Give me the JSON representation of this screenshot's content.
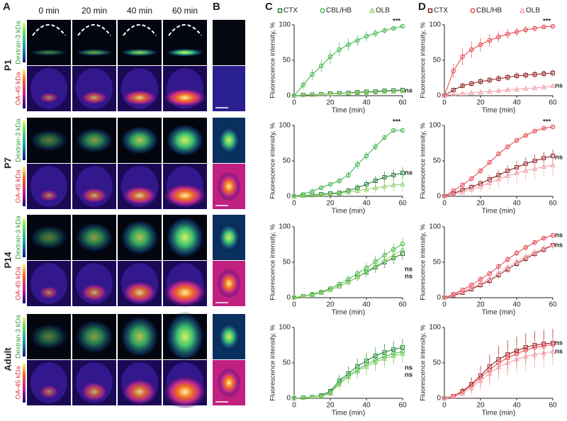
{
  "panels": [
    "A",
    "B",
    "C",
    "D"
  ],
  "panel_a": {
    "columns": [
      "0 min",
      "20 min",
      "40 min",
      "60 min"
    ],
    "groups": [
      {
        "label": "P1",
        "rows": [
          "Dextran-3 kDa",
          "OA-45 kDa"
        ]
      },
      {
        "label": "P7",
        "rows": [
          "Dextran-3 kDa",
          "OA-45 kDa"
        ]
      },
      {
        "label": "P14",
        "rows": [
          "Dextran-3 kDa",
          "OA-45 kDa"
        ]
      },
      {
        "label": "Adult",
        "rows": [
          "Dextran-3 kDa",
          "OA-45 kDa"
        ]
      }
    ]
  },
  "chart_data": [
    {
      "type": "line",
      "xlabel": "Time (min)",
      "ylabel": "Fluorescence intensity, %",
      "x": [
        0,
        5,
        10,
        15,
        20,
        25,
        30,
        35,
        40,
        45,
        50,
        55,
        60
      ],
      "xlim": [
        0,
        60
      ],
      "ylim": [
        0,
        100
      ],
      "xticks": [
        0,
        20,
        40,
        60
      ],
      "yticks": [
        0,
        50,
        100
      ],
      "annotations": [
        "***",
        "ns"
      ],
      "series": [
        {
          "name": "CTX",
          "color": "#1d7a32",
          "marker": "square",
          "values": [
            0,
            1,
            1.5,
            2,
            3,
            3.5,
            4,
            5,
            5.5,
            6,
            7,
            7.5,
            8
          ],
          "errors": [
            0,
            1,
            1,
            1,
            1,
            1,
            1,
            1,
            1,
            1,
            1,
            1,
            1
          ]
        },
        {
          "name": "CBL/HB",
          "color": "#3cb54a",
          "marker": "circle",
          "values": [
            0,
            15,
            30,
            42,
            55,
            65,
            72,
            78,
            84,
            88,
            92,
            95,
            98
          ],
          "errors": [
            0,
            6,
            8,
            9,
            10,
            10,
            9,
            8,
            7,
            6,
            4,
            3,
            2
          ]
        },
        {
          "name": "OLB",
          "color": "#8fd16a",
          "marker": "triangle",
          "values": [
            0,
            1,
            1.5,
            2,
            2.5,
            3,
            3.5,
            4,
            4.5,
            5,
            5.5,
            6,
            6.5
          ],
          "errors": [
            0,
            1,
            1,
            1,
            1,
            1,
            1,
            1,
            1,
            1,
            1,
            1,
            1
          ]
        }
      ]
    },
    {
      "type": "line",
      "xlabel": "Time (min)",
      "ylabel": "Fluorescence intensity, %",
      "x": [
        0,
        5,
        10,
        15,
        20,
        25,
        30,
        35,
        40,
        45,
        50,
        55,
        60
      ],
      "xlim": [
        0,
        60
      ],
      "ylim": [
        0,
        100
      ],
      "xticks": [
        0,
        20,
        40,
        60
      ],
      "yticks": [
        0,
        50,
        100
      ],
      "annotations": [
        "***",
        "ns"
      ],
      "series": [
        {
          "color": "#1d7a32",
          "marker": "square",
          "values": [
            0,
            1,
            2,
            3,
            4,
            5,
            8,
            12,
            17,
            22,
            27,
            30,
            33
          ],
          "errors": [
            0,
            1,
            1,
            2,
            2,
            3,
            4,
            5,
            6,
            7,
            8,
            8,
            8
          ]
        },
        {
          "color": "#3cb54a",
          "marker": "circle",
          "values": [
            0,
            3,
            7,
            12,
            17,
            22,
            30,
            45,
            57,
            70,
            83,
            93,
            93
          ],
          "errors": [
            0,
            2,
            2,
            3,
            3,
            4,
            5,
            6,
            6,
            5,
            4,
            3,
            3
          ]
        },
        {
          "color": "#8fd16a",
          "marker": "triangle",
          "values": [
            0,
            1,
            1.5,
            2,
            3,
            4,
            6,
            8,
            10,
            12,
            14,
            16,
            17
          ],
          "errors": [
            0,
            1,
            1,
            2,
            2,
            3,
            4,
            5,
            6,
            7,
            8,
            9,
            10
          ]
        }
      ]
    },
    {
      "type": "line",
      "xlabel": "Time (min)",
      "ylabel": "Fluorescence intensity, %",
      "x": [
        0,
        5,
        10,
        15,
        20,
        25,
        30,
        35,
        40,
        45,
        50,
        55,
        60
      ],
      "xlim": [
        0,
        60
      ],
      "ylim": [
        0,
        100
      ],
      "xticks": [
        0,
        20,
        40,
        60
      ],
      "yticks": [
        0,
        50,
        100
      ],
      "annotations": [
        "ns",
        "ns"
      ],
      "series": [
        {
          "color": "#1d7a32",
          "marker": "square",
          "values": [
            0,
            2,
            4,
            7,
            11,
            16,
            22,
            29,
            36,
            43,
            50,
            56,
            62
          ],
          "errors": [
            0,
            1,
            2,
            2,
            3,
            4,
            5,
            6,
            7,
            8,
            8,
            9,
            9
          ]
        },
        {
          "color": "#3cb54a",
          "marker": "circle",
          "values": [
            0,
            2,
            5,
            8,
            13,
            19,
            26,
            34,
            42,
            51,
            60,
            68,
            76
          ],
          "errors": [
            0,
            1,
            2,
            2,
            3,
            4,
            5,
            6,
            7,
            8,
            8,
            9,
            9
          ]
        },
        {
          "color": "#8fd16a",
          "marker": "triangle",
          "values": [
            0,
            2,
            4,
            7,
            11,
            16,
            22,
            29,
            37,
            45,
            53,
            60,
            68
          ],
          "errors": [
            0,
            1,
            2,
            2,
            3,
            4,
            5,
            6,
            7,
            8,
            9,
            10,
            10
          ]
        }
      ]
    },
    {
      "type": "line",
      "xlabel": "Time (min)",
      "ylabel": "Fluorescence intensity, %",
      "x": [
        0,
        5,
        10,
        15,
        20,
        25,
        30,
        35,
        40,
        45,
        50,
        55,
        60
      ],
      "xlim": [
        0,
        60
      ],
      "ylim": [
        0,
        100
      ],
      "xticks": [
        0,
        20,
        40,
        60
      ],
      "yticks": [
        0,
        50,
        100
      ],
      "annotations": [
        "ns",
        "ns"
      ],
      "series": [
        {
          "color": "#1d7a32",
          "marker": "square",
          "values": [
            0,
            1,
            2,
            4,
            10,
            25,
            35,
            45,
            53,
            60,
            65,
            69,
            72
          ],
          "errors": [
            0,
            1,
            1,
            2,
            4,
            8,
            10,
            11,
            12,
            12,
            12,
            12,
            12
          ]
        },
        {
          "color": "#3cb54a",
          "marker": "circle",
          "values": [
            0,
            1,
            2,
            3,
            8,
            22,
            32,
            40,
            48,
            54,
            59,
            63,
            66
          ],
          "errors": [
            0,
            1,
            1,
            2,
            4,
            8,
            10,
            11,
            12,
            12,
            12,
            12,
            12
          ]
        },
        {
          "color": "#8fd16a",
          "marker": "triangle",
          "values": [
            0,
            1,
            2,
            3,
            7,
            20,
            30,
            38,
            45,
            51,
            56,
            60,
            63
          ],
          "errors": [
            0,
            1,
            1,
            2,
            4,
            8,
            10,
            11,
            12,
            13,
            13,
            13,
            13
          ]
        }
      ]
    },
    {
      "type": "line",
      "xlabel": "Time (min)",
      "ylabel": "Fluorescence intensity, %",
      "x": [
        0,
        5,
        10,
        15,
        20,
        25,
        30,
        35,
        40,
        45,
        50,
        55,
        60
      ],
      "xlim": [
        0,
        60
      ],
      "ylim": [
        0,
        100
      ],
      "xticks": [
        0,
        20,
        40,
        60
      ],
      "yticks": [
        0,
        50,
        100
      ],
      "annotations": [
        "***",
        "ns"
      ],
      "series": [
        {
          "name": "CTX",
          "color": "#8b1c1c",
          "marker": "square",
          "values": [
            0,
            8,
            14,
            17,
            20,
            22,
            24,
            26,
            28,
            29,
            30,
            31,
            32
          ],
          "errors": [
            0,
            3,
            4,
            4,
            5,
            5,
            5,
            5,
            5,
            5,
            5,
            5,
            5
          ]
        },
        {
          "name": "CBL/HB",
          "color": "#e6404b",
          "marker": "circle",
          "values": [
            0,
            35,
            55,
            65,
            72,
            78,
            83,
            87,
            90,
            93,
            95,
            97,
            98
          ],
          "errors": [
            0,
            10,
            12,
            12,
            10,
            9,
            8,
            7,
            6,
            5,
            4,
            3,
            2
          ]
        },
        {
          "name": "OLB",
          "color": "#f2a0a8",
          "marker": "triangle",
          "values": [
            0,
            2,
            3,
            4,
            5,
            6,
            7,
            8,
            9,
            10,
            11,
            12,
            14
          ],
          "errors": [
            0,
            1,
            2,
            2,
            2,
            2,
            3,
            3,
            3,
            3,
            3,
            3,
            3
          ]
        }
      ]
    },
    {
      "type": "line",
      "xlabel": "Time (min)",
      "ylabel": "Fluorescence intensity, %",
      "x": [
        0,
        5,
        10,
        15,
        20,
        25,
        30,
        35,
        40,
        45,
        50,
        55,
        60
      ],
      "xlim": [
        0,
        60
      ],
      "ylim": [
        0,
        100
      ],
      "xticks": [
        0,
        20,
        40,
        60
      ],
      "yticks": [
        0,
        50,
        100
      ],
      "annotations": [
        "***",
        "ns"
      ],
      "series": [
        {
          "color": "#8b1c1c",
          "marker": "square",
          "values": [
            0,
            4,
            9,
            13,
            18,
            24,
            30,
            36,
            41,
            46,
            50,
            54,
            57
          ],
          "errors": [
            0,
            2,
            3,
            4,
            5,
            6,
            7,
            8,
            9,
            9,
            9,
            9,
            9
          ]
        },
        {
          "color": "#e6404b",
          "marker": "circle",
          "values": [
            0,
            8,
            16,
            25,
            36,
            48,
            60,
            70,
            79,
            86,
            92,
            96,
            98
          ],
          "errors": [
            0,
            2,
            2,
            3,
            3,
            3,
            3,
            3,
            3,
            2,
            2,
            2,
            2
          ]
        },
        {
          "color": "#f2a0a8",
          "marker": "triangle",
          "values": [
            0,
            3,
            6,
            10,
            14,
            19,
            24,
            29,
            33,
            36,
            39,
            42,
            44
          ],
          "errors": [
            0,
            2,
            4,
            6,
            8,
            10,
            12,
            13,
            14,
            15,
            15,
            15,
            15
          ]
        }
      ]
    },
    {
      "type": "line",
      "xlabel": "Time (min)",
      "ylabel": "Fluorescence intensity, %",
      "x": [
        0,
        5,
        10,
        15,
        20,
        25,
        30,
        35,
        40,
        45,
        50,
        55,
        60
      ],
      "xlim": [
        0,
        60
      ],
      "ylim": [
        0,
        100
      ],
      "xticks": [
        0,
        20,
        40,
        60
      ],
      "yticks": [
        0,
        50,
        100
      ],
      "annotations": [
        "ns",
        "ns"
      ],
      "series": [
        {
          "color": "#8b1c1c",
          "marker": "square",
          "values": [
            0,
            3,
            7,
            12,
            18,
            24,
            32,
            40,
            48,
            55,
            62,
            68,
            74
          ],
          "errors": [
            0,
            1,
            2,
            3,
            4,
            5,
            5,
            5,
            5,
            5,
            5,
            5,
            5
          ]
        },
        {
          "color": "#e6404b",
          "marker": "circle",
          "values": [
            0,
            5,
            11,
            18,
            26,
            34,
            44,
            54,
            63,
            71,
            78,
            84,
            88
          ],
          "errors": [
            0,
            1,
            2,
            3,
            4,
            4,
            4,
            4,
            4,
            4,
            3,
            3,
            3
          ]
        },
        {
          "color": "#f2a0a8",
          "marker": "triangle",
          "values": [
            0,
            4,
            9,
            14,
            20,
            27,
            35,
            43,
            51,
            58,
            64,
            70,
            74
          ],
          "errors": [
            0,
            1,
            2,
            3,
            4,
            5,
            5,
            5,
            5,
            5,
            5,
            5,
            5
          ]
        }
      ]
    },
    {
      "type": "line",
      "xlabel": "Time (min)",
      "ylabel": "Fluorescence intensity, %",
      "x": [
        0,
        5,
        10,
        15,
        20,
        25,
        30,
        35,
        40,
        45,
        50,
        55,
        60
      ],
      "xlim": [
        0,
        60
      ],
      "ylim": [
        0,
        100
      ],
      "xticks": [
        0,
        20,
        40,
        60
      ],
      "yticks": [
        0,
        50,
        100
      ],
      "annotations": [
        "ns",
        "ns"
      ],
      "series": [
        {
          "color": "#8b1c1c",
          "marker": "square",
          "values": [
            0,
            3,
            10,
            20,
            32,
            45,
            55,
            62,
            67,
            72,
            75,
            77,
            78
          ],
          "errors": [
            0,
            2,
            5,
            10,
            14,
            17,
            19,
            20,
            20,
            20,
            20,
            20,
            20
          ]
        },
        {
          "color": "#e6404b",
          "marker": "circle",
          "values": [
            0,
            3,
            9,
            18,
            29,
            40,
            50,
            57,
            63,
            68,
            72,
            74,
            76
          ],
          "errors": [
            0,
            2,
            5,
            10,
            14,
            17,
            19,
            20,
            20,
            20,
            20,
            20,
            20
          ]
        },
        {
          "color": "#f2a0a8",
          "marker": "triangle",
          "values": [
            0,
            2,
            7,
            15,
            25,
            35,
            44,
            50,
            55,
            59,
            62,
            64,
            66
          ],
          "errors": [
            0,
            2,
            5,
            10,
            14,
            17,
            19,
            20,
            20,
            20,
            20,
            20,
            20
          ]
        }
      ]
    }
  ]
}
